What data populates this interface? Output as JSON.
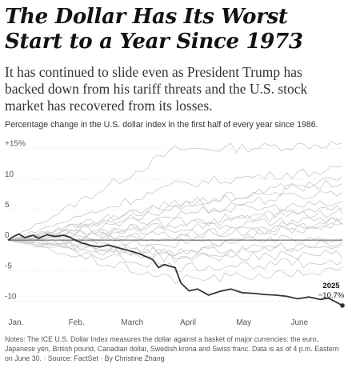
{
  "headline": "The Dollar Has Its Worst Start to a Year Since 1973",
  "dek": "It has continued to slide even as President Trump has backed down from his tariff threats and the U.S. stock market has recovered from its losses.",
  "subhead": "Percentage change in the U.S. dollar index in the first half of every year since 1986.",
  "notes": "Notes: The ICE U.S. Dollar Index measures the dollar against a basket of major currencies: the euro, Japanese yen, British pound, Canadian dollar, Swedish krona and Swiss franc. Data is as of 4 p.m. Eastern on June 30. · Source: FactSet · By Christine Zhang",
  "colors": {
    "highlight": "#333333",
    "background_lines": "#c8c8c8",
    "zero_line": "#555555",
    "grid": "#e4e4e4"
  },
  "chart_data": {
    "type": "line",
    "title": "Percentage change in the U.S. dollar index in the first half of every year since 1986.",
    "xlabel": "",
    "ylabel": "",
    "ylim": [
      -11.5,
      16
    ],
    "yticks": [
      {
        "value": 15,
        "label": "+15%"
      },
      {
        "value": 10,
        "label": "10"
      },
      {
        "value": 5,
        "label": "5"
      },
      {
        "value": 0,
        "label": "0"
      },
      {
        "value": -5,
        "label": "-5"
      },
      {
        "value": -10,
        "label": "-10"
      }
    ],
    "xlim": [
      0,
      6
    ],
    "xticks": [
      {
        "value": 0,
        "label": "Jan."
      },
      {
        "value": 1,
        "label": "Feb."
      },
      {
        "value": 2,
        "label": "March"
      },
      {
        "value": 3,
        "label": "April"
      },
      {
        "value": 4,
        "label": "May"
      },
      {
        "value": 5,
        "label": "June"
      }
    ],
    "grid": true,
    "highlight": {
      "name": "2025",
      "annotation_year": "2025",
      "annotation_value": "−10.7%",
      "x": [
        0,
        0.1,
        0.2,
        0.3,
        0.45,
        0.55,
        0.7,
        0.85,
        1.0,
        1.1,
        1.3,
        1.5,
        1.65,
        1.8,
        2.0,
        2.2,
        2.35,
        2.45,
        2.6,
        2.7,
        2.8,
        3.0,
        3.1,
        3.25,
        3.4,
        3.6,
        3.8,
        4.0,
        4.2,
        4.4,
        4.6,
        4.8,
        5.0,
        5.2,
        5.4,
        5.6,
        5.75,
        5.9,
        6.0
      ],
      "y": [
        0,
        0.6,
        1.0,
        0.4,
        0.8,
        0.3,
        0.9,
        0.6,
        0.8,
        0.5,
        -0.4,
        -0.9,
        -1.1,
        -0.8,
        -1.3,
        -1.8,
        -2.2,
        -2.6,
        -3.2,
        -4.5,
        -4.0,
        -4.5,
        -7.0,
        -8.3,
        -8.0,
        -9.0,
        -8.4,
        -8.0,
        -8.6,
        -8.7,
        -8.9,
        -9.0,
        -9.2,
        -9.6,
        -9.3,
        -9.7,
        -9.5,
        -10.2,
        -10.7
      ]
    },
    "background_series_values": [
      [
        14.8,
        15.2,
        15.8
      ],
      [
        9.0,
        10.5,
        11.5
      ],
      [
        5.8,
        7.6,
        9.5
      ],
      [
        5.0,
        5.2,
        6.0
      ],
      [
        3.0,
        4.0,
        5.0
      ],
      [
        2.0,
        2.7,
        3.5
      ],
      [
        0.9,
        1.5,
        2.2
      ],
      [
        -0.5,
        -0.2,
        0.5
      ],
      [
        -1.8,
        -1.4,
        -1.0
      ],
      [
        -3.0,
        -2.6,
        -2.2
      ],
      [
        -4.5,
        -4.0,
        -3.5
      ],
      [
        -6.5,
        -5.8,
        -5.0
      ],
      [
        -2.0,
        1.0,
        3.0
      ],
      [
        -2.5,
        -1.5,
        -0.5
      ],
      [
        2.5,
        3.5,
        4.5
      ],
      [
        4.0,
        6.5,
        8.0
      ],
      [
        6.0,
        8.0,
        10.0
      ],
      [
        0.5,
        2.0,
        3.0
      ]
    ]
  }
}
